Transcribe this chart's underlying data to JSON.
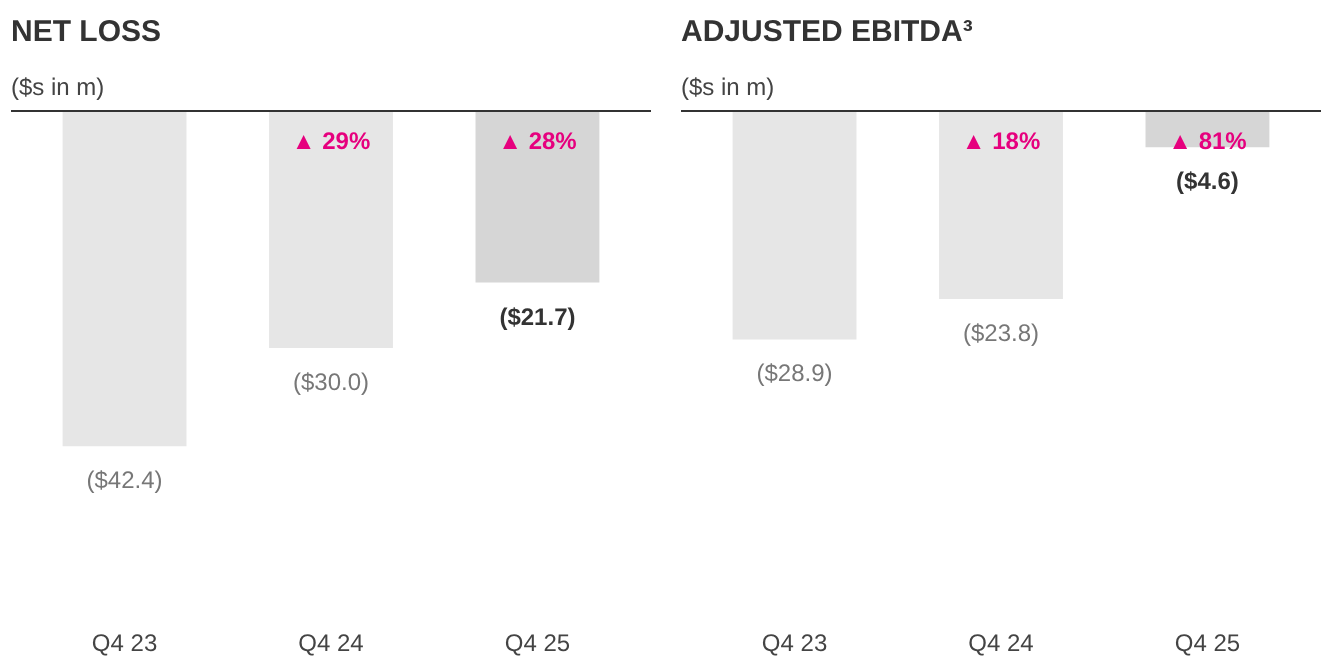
{
  "chart_data": [
    {
      "type": "bar",
      "title": "NET LOSS",
      "subtitle": "($s in m)",
      "categories": [
        "Q4 23",
        "Q4 24",
        "Q4 25"
      ],
      "values": [
        -42.4,
        -30.0,
        -21.7
      ],
      "colors": [
        "#e6e6e6",
        "#e6e6e6",
        "#d6d6d6"
      ],
      "value_labels": [
        "($42.4)",
        "($30.0)",
        "($21.7)"
      ],
      "annotations": [
        "▲ 29%",
        "▲ 28%"
      ]
    },
    {
      "type": "bar",
      "title": "ADJUSTED EBITDA³",
      "subtitle": "($s in m)",
      "categories": [
        "Q4 23",
        "Q4 24",
        "Q4 25"
      ],
      "values": [
        -28.9,
        -23.8,
        -4.6
      ],
      "colors": [
        "#e6e6e6",
        "#e6e6e6",
        "#d6d6d6"
      ],
      "value_labels": [
        "($28.9)",
        "($23.8)",
        "($4.6)"
      ],
      "annotations": [
        "▲ 18%",
        "▲ 81%"
      ]
    }
  ]
}
